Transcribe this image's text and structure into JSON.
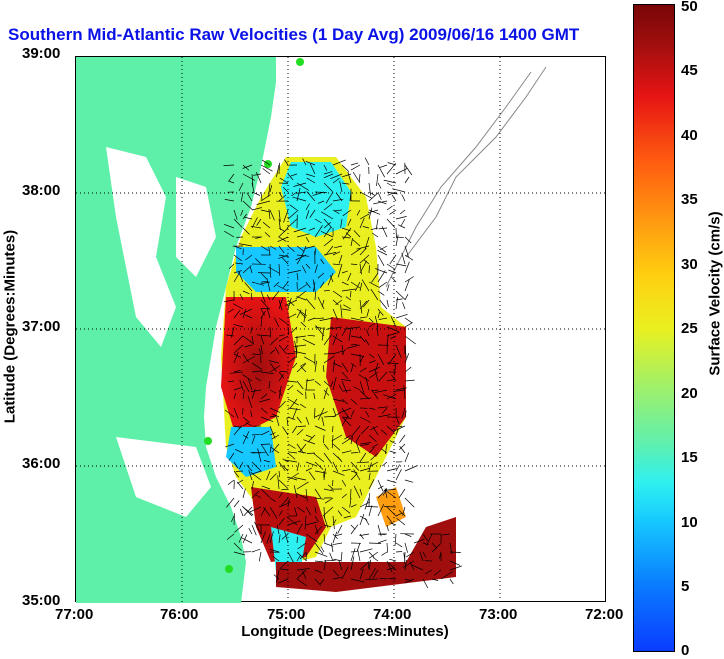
{
  "title": "Southern Mid-Atlantic Raw Velocities (1 Day Avg) 2009/06/16 1400 GMT",
  "map": {
    "xlabel": "Longitude (Degrees:Minutes)",
    "ylabel": "Latitude (Degrees:Minutes)",
    "x_ticks": [
      "77:00",
      "76:00",
      "75:00",
      "74:00",
      "73:00",
      "72:00"
    ],
    "y_ticks": [
      "39:00",
      "38:00",
      "37:00",
      "36:00",
      "35:00"
    ],
    "lon_range": [
      -77,
      -72
    ],
    "lat_range": [
      35,
      39
    ],
    "land_color": "#5ef0a8",
    "grid": "dotted"
  },
  "colorbar": {
    "label": "Surface Velocity (cm/s)",
    "ticks": [
      "50",
      "45",
      "40",
      "35",
      "30",
      "25",
      "20",
      "15",
      "10",
      "5",
      "0"
    ],
    "range": [
      0,
      50
    ]
  }
}
